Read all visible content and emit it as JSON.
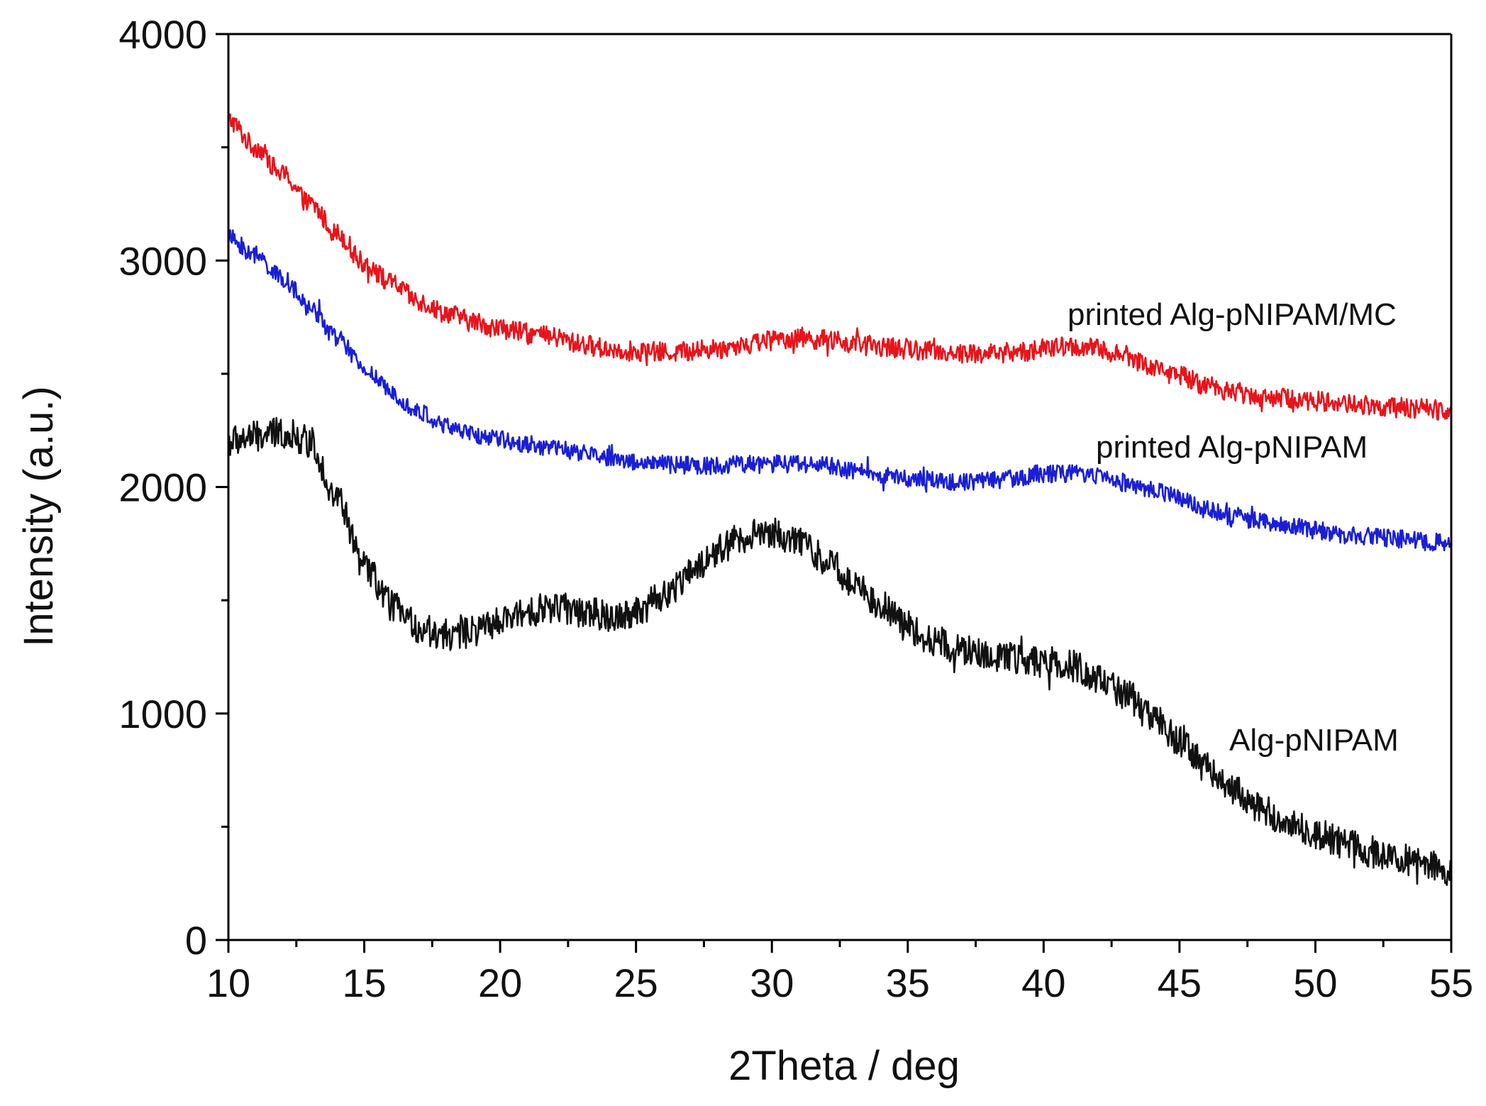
{
  "chart_data": {
    "type": "line",
    "title": "",
    "xlabel": "2Theta / deg",
    "ylabel": "Intensity (a.u.)",
    "xlim": [
      10,
      55
    ],
    "ylim": [
      0,
      4000
    ],
    "x_major_ticks": [
      10,
      15,
      20,
      25,
      30,
      35,
      40,
      45,
      50,
      55
    ],
    "x_tick_labels": [
      "10",
      "15",
      "20",
      "25",
      "30",
      "35",
      "40",
      "45",
      "50",
      "55"
    ],
    "y_major_ticks": [
      0,
      1000,
      2000,
      3000,
      4000
    ],
    "y_tick_labels": [
      "0",
      "1000",
      "2000",
      "3000",
      "4000"
    ],
    "grid": false,
    "legend": "none (inline labels beside each curve)",
    "series": [
      {
        "name": "printed Alg-pNIPAM/MC",
        "color": "#e8141b",
        "noise": 45,
        "x": [
          10,
          11,
          12,
          13,
          14,
          15,
          16,
          17,
          18,
          19,
          20,
          21,
          22,
          23,
          24,
          25,
          26,
          27,
          28,
          29,
          30,
          31,
          32,
          33,
          34,
          35,
          36,
          37,
          38,
          39,
          40,
          41,
          42,
          43,
          44,
          45,
          46,
          47,
          48,
          49,
          50,
          51,
          52,
          53,
          54,
          55
        ],
        "values": [
          3620,
          3500,
          3380,
          3250,
          3120,
          2990,
          2900,
          2820,
          2770,
          2730,
          2700,
          2680,
          2660,
          2630,
          2610,
          2600,
          2595,
          2600,
          2610,
          2630,
          2650,
          2660,
          2650,
          2630,
          2620,
          2610,
          2600,
          2590,
          2590,
          2595,
          2610,
          2620,
          2610,
          2580,
          2530,
          2490,
          2450,
          2420,
          2400,
          2390,
          2380,
          2370,
          2360,
          2350,
          2345,
          2340
        ]
      },
      {
        "name": "printed Alg-pNIPAM",
        "color": "#1a1fd6",
        "noise": 40,
        "x": [
          10,
          11,
          12,
          13,
          14,
          15,
          16,
          17,
          18,
          19,
          20,
          21,
          22,
          23,
          24,
          25,
          26,
          27,
          28,
          29,
          30,
          31,
          32,
          33,
          34,
          35,
          36,
          37,
          38,
          39,
          40,
          41,
          42,
          43,
          44,
          45,
          46,
          47,
          48,
          49,
          50,
          51,
          52,
          53,
          54,
          55
        ],
        "values": [
          3100,
          3020,
          2920,
          2790,
          2660,
          2520,
          2420,
          2330,
          2270,
          2230,
          2210,
          2190,
          2170,
          2150,
          2130,
          2110,
          2100,
          2095,
          2095,
          2100,
          2100,
          2105,
          2095,
          2070,
          2050,
          2040,
          2030,
          2025,
          2030,
          2040,
          2060,
          2060,
          2050,
          2020,
          1990,
          1950,
          1900,
          1870,
          1850,
          1830,
          1810,
          1790,
          1780,
          1770,
          1760,
          1750
        ]
      },
      {
        "name": "Alg-pNIPAM",
        "color": "#111111",
        "noise": 70,
        "x": [
          10,
          11,
          12,
          13,
          14,
          15,
          16,
          17,
          18,
          19,
          20,
          21,
          22,
          23,
          24,
          25,
          26,
          27,
          28,
          29,
          30,
          31,
          32,
          33,
          34,
          35,
          36,
          37,
          38,
          39,
          40,
          41,
          42,
          43,
          44,
          45,
          46,
          47,
          48,
          49,
          50,
          51,
          52,
          53,
          54,
          55
        ],
        "values": [
          2200,
          2220,
          2240,
          2200,
          1950,
          1650,
          1480,
          1380,
          1340,
          1360,
          1400,
          1450,
          1470,
          1450,
          1430,
          1450,
          1520,
          1620,
          1720,
          1780,
          1800,
          1760,
          1680,
          1580,
          1480,
          1380,
          1320,
          1280,
          1250,
          1240,
          1230,
          1210,
          1160,
          1080,
          980,
          880,
          760,
          660,
          580,
          520,
          470,
          430,
          390,
          360,
          330,
          310
        ]
      }
    ]
  }
}
